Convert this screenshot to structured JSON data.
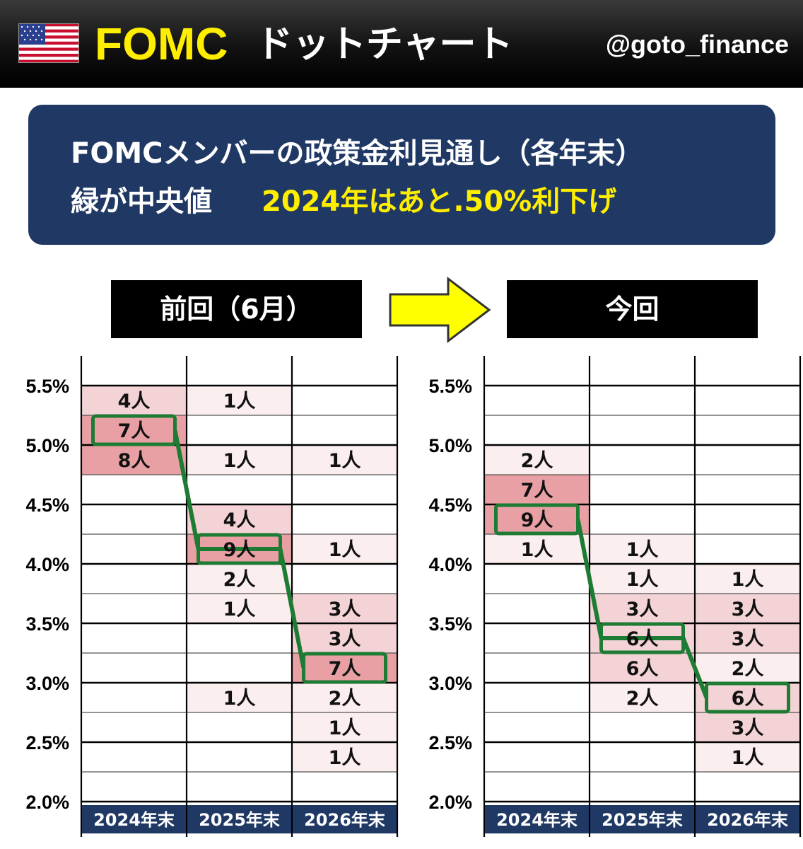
{
  "header": {
    "brand": "FOMC",
    "subtitle": "ドットチャート",
    "handle": "@goto_finance",
    "flag_icon": "us-flag-icon"
  },
  "banner": {
    "line1": "FOMCメンバーの政策金利見通し（各年末）",
    "line2_white": "緑が中央値",
    "line2_yellow": "2024年はあと.50%利下げ"
  },
  "periods": {
    "previous": "前回（6月）",
    "current": "今回"
  },
  "colors": {
    "header_bg": "#111111",
    "banner_bg": "#1f3864",
    "accent_yellow": "#ffee00",
    "median_border": "#1e7b34",
    "year_label_bg": "#1f3864",
    "shade_light": "#fbeeee",
    "shade_mid": "#f3d3d5",
    "shade_dark": "#e8a0a4"
  },
  "chart_data": [
    {
      "type": "table",
      "title": "前回（6月）",
      "categories": [
        "2024年末",
        "2025年末",
        "2026年末"
      ],
      "y_ticks": [
        "5.5%",
        "5.0%",
        "4.5%",
        "4.0%",
        "3.5%",
        "3.0%",
        "2.5%",
        "2.0%"
      ],
      "ylim": [
        2.0,
        5.75
      ],
      "series": [
        {
          "year": "2024年末",
          "dots": [
            {
              "rate": 5.375,
              "count": 4,
              "label": "4人"
            },
            {
              "rate": 5.125,
              "count": 7,
              "label": "7人"
            },
            {
              "rate": 4.875,
              "count": 8,
              "label": "8人"
            }
          ],
          "median": 5.125
        },
        {
          "year": "2025年末",
          "dots": [
            {
              "rate": 5.375,
              "count": 1,
              "label": "1人"
            },
            {
              "rate": 4.875,
              "count": 1,
              "label": "1人"
            },
            {
              "rate": 4.375,
              "count": 4,
              "label": "4人"
            },
            {
              "rate": 4.125,
              "count": 9,
              "label": "9人"
            },
            {
              "rate": 3.875,
              "count": 2,
              "label": "2人"
            },
            {
              "rate": 3.625,
              "count": 1,
              "label": "1人"
            },
            {
              "rate": 2.875,
              "count": 1,
              "label": "1人"
            }
          ],
          "median": 4.125
        },
        {
          "year": "2026年末",
          "dots": [
            {
              "rate": 4.875,
              "count": 1,
              "label": "1人"
            },
            {
              "rate": 4.125,
              "count": 1,
              "label": "1人"
            },
            {
              "rate": 3.625,
              "count": 3,
              "label": "3人"
            },
            {
              "rate": 3.375,
              "count": 3,
              "label": "3人"
            },
            {
              "rate": 3.125,
              "count": 7,
              "label": "7人"
            },
            {
              "rate": 2.875,
              "count": 2,
              "label": "2人"
            },
            {
              "rate": 2.625,
              "count": 1,
              "label": "1人"
            },
            {
              "rate": 2.375,
              "count": 1,
              "label": "1人"
            }
          ],
          "median": 3.125
        }
      ]
    },
    {
      "type": "table",
      "title": "今回",
      "categories": [
        "2024年末",
        "2025年末",
        "2026年末"
      ],
      "y_ticks": [
        "5.5%",
        "5.0%",
        "4.5%",
        "4.0%",
        "3.5%",
        "3.0%",
        "2.5%",
        "2.0%"
      ],
      "ylim": [
        2.0,
        5.75
      ],
      "series": [
        {
          "year": "2024年末",
          "dots": [
            {
              "rate": 4.875,
              "count": 2,
              "label": "2人"
            },
            {
              "rate": 4.625,
              "count": 7,
              "label": "7人"
            },
            {
              "rate": 4.375,
              "count": 9,
              "label": "9人"
            },
            {
              "rate": 4.125,
              "count": 1,
              "label": "1人"
            }
          ],
          "median": 4.375
        },
        {
          "year": "2025年末",
          "dots": [
            {
              "rate": 4.125,
              "count": 1,
              "label": "1人"
            },
            {
              "rate": 3.875,
              "count": 1,
              "label": "1人"
            },
            {
              "rate": 3.625,
              "count": 3,
              "label": "3人"
            },
            {
              "rate": 3.375,
              "count": 6,
              "label": "6人"
            },
            {
              "rate": 3.125,
              "count": 6,
              "label": "6人"
            },
            {
              "rate": 2.875,
              "count": 2,
              "label": "2人"
            }
          ],
          "median": 3.375
        },
        {
          "year": "2026年末",
          "dots": [
            {
              "rate": 3.875,
              "count": 1,
              "label": "1人"
            },
            {
              "rate": 3.625,
              "count": 3,
              "label": "3人"
            },
            {
              "rate": 3.375,
              "count": 3,
              "label": "3人"
            },
            {
              "rate": 3.125,
              "count": 2,
              "label": "2人"
            },
            {
              "rate": 2.875,
              "count": 6,
              "label": "6人"
            },
            {
              "rate": 2.625,
              "count": 3,
              "label": "3人"
            },
            {
              "rate": 2.375,
              "count": 1,
              "label": "1人"
            }
          ],
          "median": 2.875
        }
      ]
    }
  ]
}
